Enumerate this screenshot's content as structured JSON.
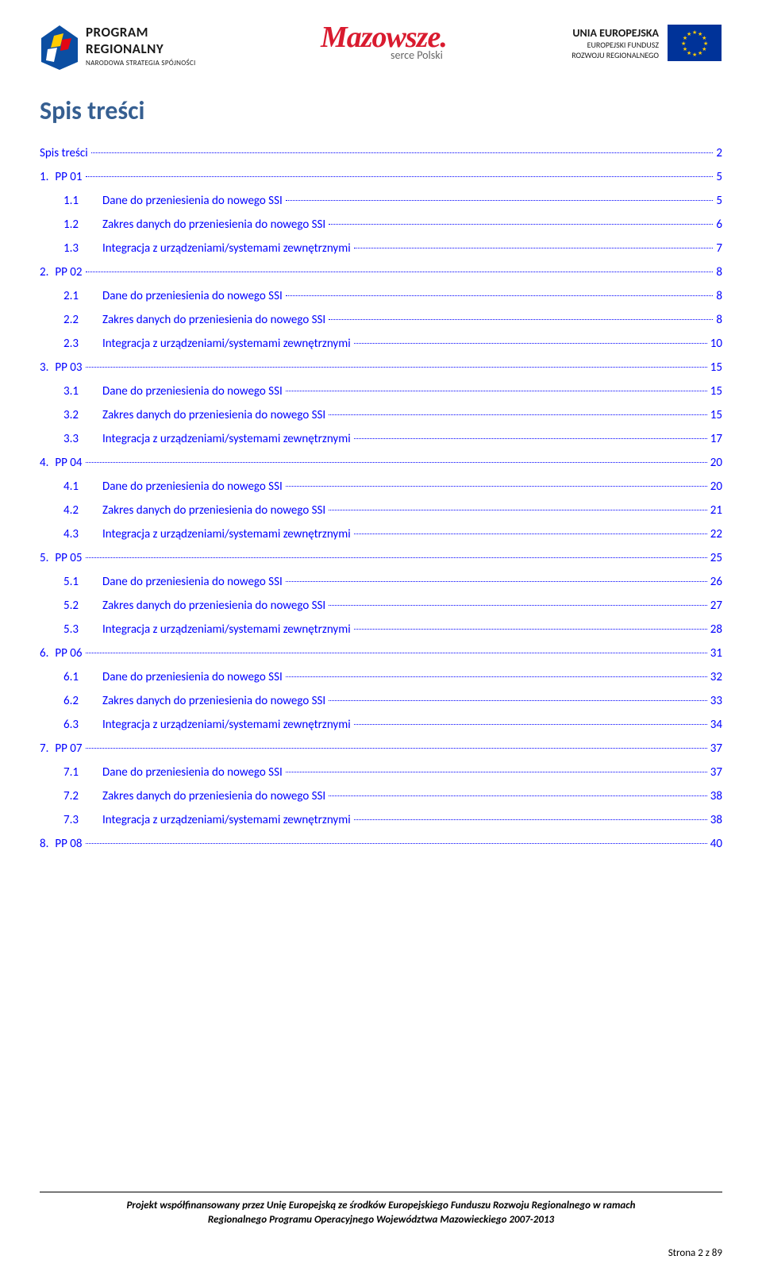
{
  "header": {
    "logo_left": {
      "line1": "PROGRAM",
      "line2": "REGIONALNY",
      "line3": "NARODOWA STRATEGIA SPÓJNOŚCI"
    },
    "logo_center": {
      "main": "Mazowsze.",
      "sub": "serce Polski"
    },
    "logo_right": {
      "line1": "UNIA EUROPEJSKA",
      "line2": "EUROPEJSKI FUNDUSZ",
      "line3": "ROZWOJU REGIONALNEGO"
    }
  },
  "main_title": "Spis treści",
  "toc": [
    {
      "level": 0,
      "number": "",
      "label": "Spis treści",
      "page": "2"
    },
    {
      "level": 1,
      "number": "1.",
      "label": "PP 01",
      "page": "5"
    },
    {
      "level": 2,
      "number": "1.1",
      "label": "Dane do przeniesienia do nowego SSI",
      "page": "5"
    },
    {
      "level": 2,
      "number": "1.2",
      "label": "Zakres danych do przeniesienia do nowego SSI",
      "page": "6"
    },
    {
      "level": 2,
      "number": "1.3",
      "label": "Integracja z urządzeniami/systemami zewnętrznymi",
      "page": "7"
    },
    {
      "level": 1,
      "number": "2.",
      "label": "PP 02",
      "page": "8"
    },
    {
      "level": 2,
      "number": "2.1",
      "label": "Dane do przeniesienia do nowego SSI",
      "page": "8"
    },
    {
      "level": 2,
      "number": "2.2",
      "label": "Zakres danych do przeniesienia do nowego SSI",
      "page": "8"
    },
    {
      "level": 2,
      "number": "2.3",
      "label": "Integracja z urządzeniami/systemami zewnętrznymi",
      "page": "10"
    },
    {
      "level": 1,
      "number": "3.",
      "label": "PP 03",
      "page": "15"
    },
    {
      "level": 2,
      "number": "3.1",
      "label": "Dane do przeniesienia do nowego SSI",
      "page": "15"
    },
    {
      "level": 2,
      "number": "3.2",
      "label": "Zakres danych do przeniesienia do nowego SSI",
      "page": "15"
    },
    {
      "level": 2,
      "number": "3.3",
      "label": "Integracja z urządzeniami/systemami zewnętrznymi",
      "page": "17"
    },
    {
      "level": 1,
      "number": "4.",
      "label": "PP 04",
      "page": "20"
    },
    {
      "level": 2,
      "number": "4.1",
      "label": "Dane do przeniesienia do nowego SSI",
      "page": "20"
    },
    {
      "level": 2,
      "number": "4.2",
      "label": "Zakres danych do przeniesienia do nowego SSI",
      "page": "21"
    },
    {
      "level": 2,
      "number": "4.3",
      "label": "Integracja z urządzeniami/systemami zewnętrznymi",
      "page": "22"
    },
    {
      "level": 1,
      "number": "5.",
      "label": "PP 05",
      "page": "25"
    },
    {
      "level": 2,
      "number": "5.1",
      "label": "Dane do przeniesienia do nowego SSI",
      "page": "26"
    },
    {
      "level": 2,
      "number": "5.2",
      "label": "Zakres danych do przeniesienia do nowego SSI",
      "page": "27"
    },
    {
      "level": 2,
      "number": "5.3",
      "label": "Integracja z urządzeniami/systemami zewnętrznymi",
      "page": "28"
    },
    {
      "level": 1,
      "number": "6.",
      "label": "PP 06",
      "page": "31"
    },
    {
      "level": 2,
      "number": "6.1",
      "label": "Dane do przeniesienia do nowego SSI",
      "page": "32"
    },
    {
      "level": 2,
      "number": "6.2",
      "label": "Zakres danych do przeniesienia do nowego SSI",
      "page": "33"
    },
    {
      "level": 2,
      "number": "6.3",
      "label": "Integracja z urządzeniami/systemami zewnętrznymi",
      "page": "34"
    },
    {
      "level": 1,
      "number": "7.",
      "label": "PP 07",
      "page": "37"
    },
    {
      "level": 2,
      "number": "7.1",
      "label": "Dane do przeniesienia do nowego SSI",
      "page": "37"
    },
    {
      "level": 2,
      "number": "7.2",
      "label": "Zakres danych do przeniesienia do nowego SSI",
      "page": "38"
    },
    {
      "level": 2,
      "number": "7.3",
      "label": "Integracja z urządzeniami/systemami zewnętrznymi",
      "page": "38"
    },
    {
      "level": 1,
      "number": "8.",
      "label": "PP 08",
      "page": "40"
    }
  ],
  "footer": {
    "line1": "Projekt współfinansowany przez Unię Europejską ze środków Europejskiego Funduszu Rozwoju Regionalnego w ramach",
    "line2": "Regionalnego Programu Operacyjnego Województwa Mazowieckiego 2007-2013",
    "pagenum": "Strona 2 z 89"
  },
  "colors": {
    "title": "#365f91",
    "toc_link": "#0000ff",
    "red_logo": "#d91b2f",
    "eu_blue": "#003399",
    "eu_gold": "#ffcc00"
  }
}
